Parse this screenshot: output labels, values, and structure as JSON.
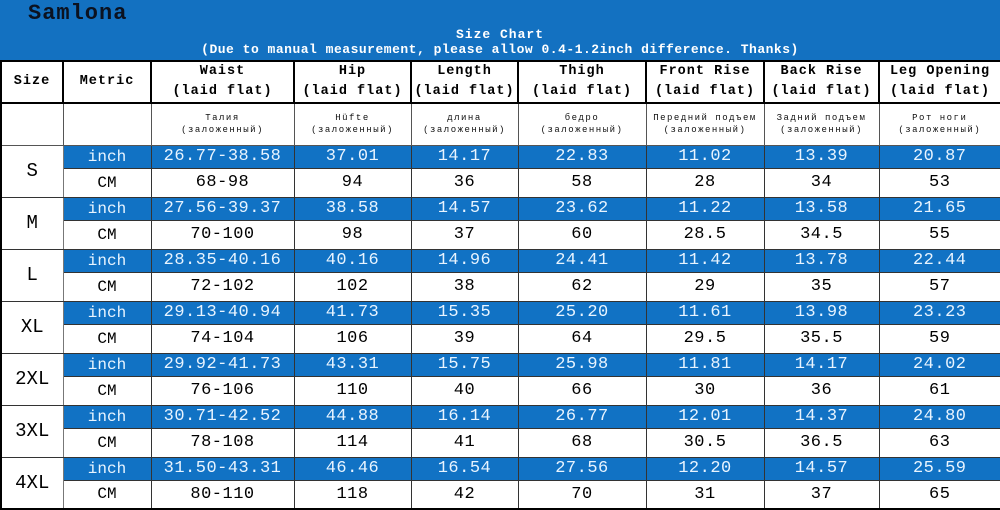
{
  "banner": {
    "brand": "Samlona",
    "title": "Size Chart",
    "note": "(Due to manual measurement, please allow 0.4-1.2inch difference. Thanks)"
  },
  "colors": {
    "banner_bg": "#1371c1",
    "highlight_bg": "#1172c4",
    "highlight_text": "#e8f4ff",
    "brand_color": "#0b1220",
    "cm_row_bg": "#ffffff",
    "body_text": "#000000"
  },
  "chart_data": {
    "type": "table",
    "title": "Size Chart",
    "note": "(Due to manual measurement, please allow 0.4-1.2inch difference. Thanks)",
    "unit_labels": [
      "inch",
      "CM"
    ],
    "columns": [
      {
        "label": "Size",
        "sub": "",
        "translation": "",
        "translation_sub": ""
      },
      {
        "label": "Metric",
        "sub": "",
        "translation": "",
        "translation_sub": ""
      },
      {
        "label": "Waist",
        "sub": "(laid flat)",
        "translation": "Талия",
        "translation_sub": "(заложенный)"
      },
      {
        "label": "Hip",
        "sub": "(laid flat)",
        "translation": "Hüfte",
        "translation_sub": "(заложенный)"
      },
      {
        "label": "Length",
        "sub": "(laid flat)",
        "translation": "длина",
        "translation_sub": "(заложенный)"
      },
      {
        "label": "Thigh",
        "sub": "(laid flat)",
        "translation": "бедро",
        "translation_sub": "(заложенный)"
      },
      {
        "label": "Front Rise",
        "sub": "(laid flat)",
        "translation": "Передний подъем",
        "translation_sub": "(заложенный)"
      },
      {
        "label": "Back Rise",
        "sub": "(laid flat)",
        "translation": "Задний подъем",
        "translation_sub": "(заложенный)"
      },
      {
        "label": "Leg Opening",
        "sub": "(laid flat)",
        "translation": "Рот ноги",
        "translation_sub": "(заложенный)"
      }
    ],
    "rows": [
      {
        "size": "S",
        "inch": [
          "26.77-38.58",
          "37.01",
          "14.17",
          "22.83",
          "11.02",
          "13.39",
          "20.87"
        ],
        "cm": [
          "68-98",
          "94",
          "36",
          "58",
          "28",
          "34",
          "53"
        ]
      },
      {
        "size": "M",
        "inch": [
          "27.56-39.37",
          "38.58",
          "14.57",
          "23.62",
          "11.22",
          "13.58",
          "21.65"
        ],
        "cm": [
          "70-100",
          "98",
          "37",
          "60",
          "28.5",
          "34.5",
          "55"
        ]
      },
      {
        "size": "L",
        "inch": [
          "28.35-40.16",
          "40.16",
          "14.96",
          "24.41",
          "11.42",
          "13.78",
          "22.44"
        ],
        "cm": [
          "72-102",
          "102",
          "38",
          "62",
          "29",
          "35",
          "57"
        ]
      },
      {
        "size": "XL",
        "inch": [
          "29.13-40.94",
          "41.73",
          "15.35",
          "25.20",
          "11.61",
          "13.98",
          "23.23"
        ],
        "cm": [
          "74-104",
          "106",
          "39",
          "64",
          "29.5",
          "35.5",
          "59"
        ]
      },
      {
        "size": "2XL",
        "inch": [
          "29.92-41.73",
          "43.31",
          "15.75",
          "25.98",
          "11.81",
          "14.17",
          "24.02"
        ],
        "cm": [
          "76-106",
          "110",
          "40",
          "66",
          "30",
          "36",
          "61"
        ]
      },
      {
        "size": "3XL",
        "inch": [
          "30.71-42.52",
          "44.88",
          "16.14",
          "26.77",
          "12.01",
          "14.37",
          "24.80"
        ],
        "cm": [
          "78-108",
          "114",
          "41",
          "68",
          "30.5",
          "36.5",
          "63"
        ]
      },
      {
        "size": "4XL",
        "inch": [
          "31.50-43.31",
          "46.46",
          "16.54",
          "27.56",
          "12.20",
          "14.57",
          "25.59"
        ],
        "cm": [
          "80-110",
          "118",
          "42",
          "70",
          "31",
          "37",
          "65"
        ]
      }
    ]
  }
}
